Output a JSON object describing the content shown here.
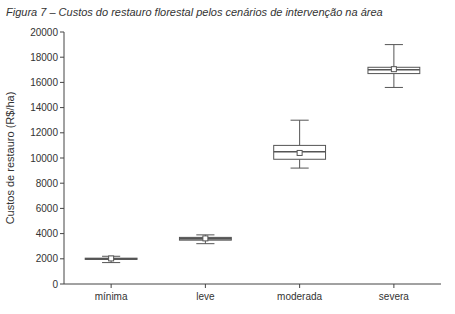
{
  "chart_data": {
    "type": "box",
    "title": "Figura 7 – Custos do restauro florestal pelos cenários de intervenção na área",
    "ylabel": "Custos de restauro (R$/ha)",
    "categories": [
      "mínima",
      "leve",
      "moderada",
      "severa"
    ],
    "boxes": [
      {
        "whislo": 1700,
        "q1": 1950,
        "median": 2000,
        "q3": 2050,
        "whishi": 2200,
        "mean": 2030
      },
      {
        "whislo": 3200,
        "q1": 3480,
        "median": 3600,
        "q3": 3700,
        "whishi": 3900,
        "mean": 3620
      },
      {
        "whislo": 9200,
        "q1": 9900,
        "median": 10500,
        "q3": 11000,
        "whishi": 13000,
        "mean": 10400
      },
      {
        "whislo": 15600,
        "q1": 16700,
        "median": 17000,
        "q3": 17200,
        "whishi": 19000,
        "mean": 17050
      }
    ],
    "colors": [
      "#c8c8c8",
      "#c8c8c8",
      "#ffffff",
      "#ffffff"
    ],
    "color": "#555555",
    "ylim": [
      0,
      20000
    ],
    "yticks": [
      0,
      2000,
      4000,
      6000,
      8000,
      10000,
      12000,
      14000,
      16000,
      18000,
      20000
    ],
    "grid": false
  }
}
